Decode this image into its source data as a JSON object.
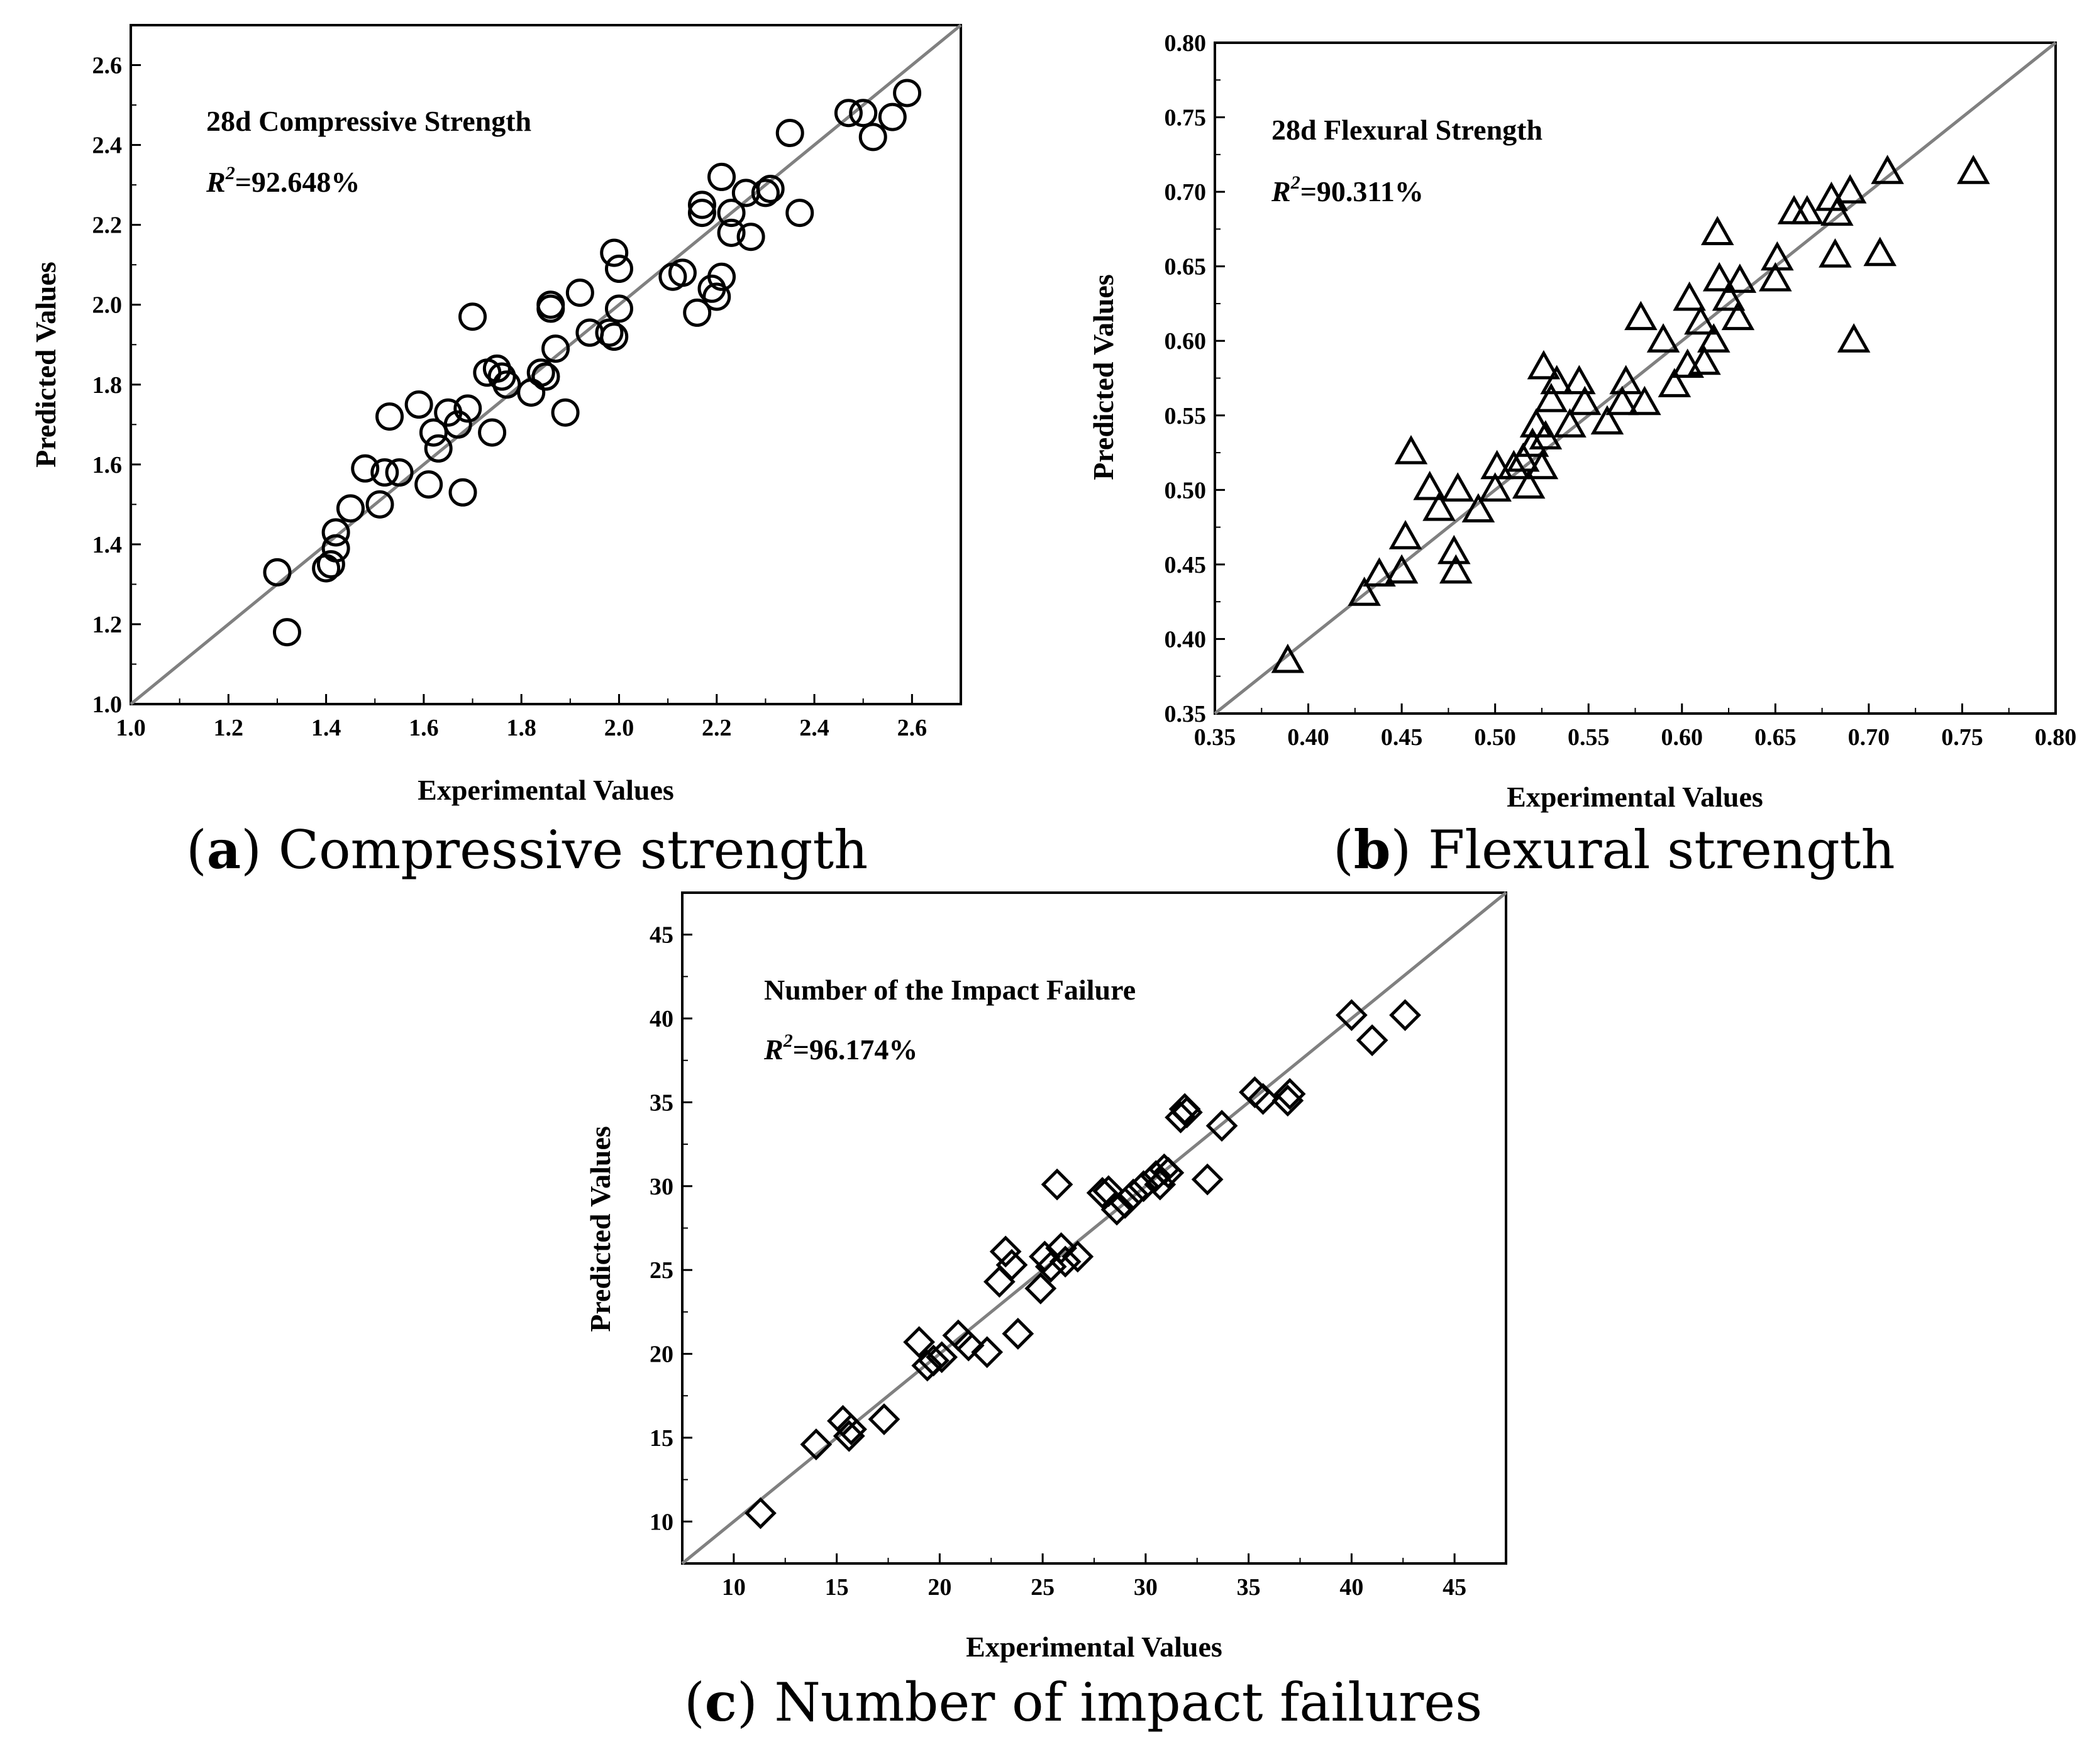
{
  "colors": {
    "marker": "#000000",
    "diagonal": "#808080",
    "axis": "#000000"
  },
  "chart_data": [
    {
      "type": "scatter",
      "marker": "circle",
      "title": "28d Compressive Strength",
      "r2_symbol": "R",
      "r2_exp": "2",
      "r2_value": "=92.648%",
      "xlabel": "Experimental Values",
      "ylabel": "Predicted Values",
      "caption_letter": "a",
      "caption_text": "Compressive strength",
      "xlim": [
        1.0,
        2.7
      ],
      "ylim": [
        1.0,
        2.7
      ],
      "xticks": [
        "1.0",
        "1.2",
        "1.4",
        "1.6",
        "1.8",
        "2.0",
        "2.2",
        "2.4",
        "2.6"
      ],
      "yticks": [
        "1.0",
        "1.2",
        "1.4",
        "1.6",
        "1.8",
        "2.0",
        "2.2",
        "2.4",
        "2.6"
      ],
      "points": [
        [
          1.3,
          1.33
        ],
        [
          1.32,
          1.18
        ],
        [
          1.4,
          1.34
        ],
        [
          1.41,
          1.35
        ],
        [
          1.42,
          1.39
        ],
        [
          1.42,
          1.43
        ],
        [
          1.45,
          1.49
        ],
        [
          1.48,
          1.59
        ],
        [
          1.51,
          1.5
        ],
        [
          1.52,
          1.58
        ],
        [
          1.53,
          1.72
        ],
        [
          1.55,
          1.58
        ],
        [
          1.59,
          1.75
        ],
        [
          1.61,
          1.55
        ],
        [
          1.62,
          1.68
        ],
        [
          1.63,
          1.64
        ],
        [
          1.65,
          1.73
        ],
        [
          1.67,
          1.7
        ],
        [
          1.68,
          1.53
        ],
        [
          1.69,
          1.74
        ],
        [
          1.7,
          1.97
        ],
        [
          1.73,
          1.83
        ],
        [
          1.74,
          1.68
        ],
        [
          1.75,
          1.84
        ],
        [
          1.76,
          1.82
        ],
        [
          1.77,
          1.8
        ],
        [
          1.82,
          1.78
        ],
        [
          1.84,
          1.83
        ],
        [
          1.85,
          1.82
        ],
        [
          1.86,
          1.99
        ],
        [
          1.86,
          2.0
        ],
        [
          1.87,
          1.89
        ],
        [
          1.89,
          1.73
        ],
        [
          1.92,
          2.03
        ],
        [
          1.94,
          1.93
        ],
        [
          1.98,
          1.93
        ],
        [
          1.99,
          1.92
        ],
        [
          1.99,
          2.13
        ],
        [
          2.0,
          1.99
        ],
        [
          2.0,
          2.09
        ],
        [
          2.11,
          2.07
        ],
        [
          2.13,
          2.08
        ],
        [
          2.16,
          1.98
        ],
        [
          2.17,
          2.23
        ],
        [
          2.17,
          2.25
        ],
        [
          2.19,
          2.04
        ],
        [
          2.2,
          2.02
        ],
        [
          2.21,
          2.07
        ],
        [
          2.21,
          2.32
        ],
        [
          2.23,
          2.23
        ],
        [
          2.23,
          2.18
        ],
        [
          2.26,
          2.28
        ],
        [
          2.27,
          2.17
        ],
        [
          2.3,
          2.28
        ],
        [
          2.31,
          2.29
        ],
        [
          2.35,
          2.43
        ],
        [
          2.37,
          2.23
        ],
        [
          2.47,
          2.48
        ],
        [
          2.5,
          2.48
        ],
        [
          2.52,
          2.42
        ],
        [
          2.56,
          2.47
        ],
        [
          2.59,
          2.53
        ]
      ]
    },
    {
      "type": "scatter",
      "marker": "triangle",
      "title": "28d Flexural Strength",
      "r2_symbol": "R",
      "r2_exp": "2",
      "r2_value": "=90.311%",
      "xlabel": "Experimental Values",
      "ylabel": "Predicted Values",
      "caption_letter": "b",
      "caption_text": "Flexural strength",
      "xlim": [
        0.35,
        0.8
      ],
      "ylim": [
        0.35,
        0.8
      ],
      "xticks": [
        "0.35",
        "0.40",
        "0.45",
        "0.50",
        "0.55",
        "0.60",
        "0.65",
        "0.70",
        "0.75",
        "0.80"
      ],
      "yticks": [
        "0.35",
        "0.40",
        "0.45",
        "0.50",
        "0.55",
        "0.60",
        "0.65",
        "0.70",
        "0.75",
        "0.80"
      ],
      "points": [
        [
          0.389,
          0.385
        ],
        [
          0.43,
          0.43
        ],
        [
          0.438,
          0.443
        ],
        [
          0.45,
          0.445
        ],
        [
          0.452,
          0.468
        ],
        [
          0.455,
          0.525
        ],
        [
          0.465,
          0.501
        ],
        [
          0.47,
          0.487
        ],
        [
          0.478,
          0.458
        ],
        [
          0.479,
          0.445
        ],
        [
          0.48,
          0.5
        ],
        [
          0.491,
          0.486
        ],
        [
          0.5,
          0.5
        ],
        [
          0.501,
          0.515
        ],
        [
          0.51,
          0.515
        ],
        [
          0.515,
          0.52
        ],
        [
          0.518,
          0.502
        ],
        [
          0.52,
          0.53
        ],
        [
          0.522,
          0.543
        ],
        [
          0.525,
          0.515
        ],
        [
          0.526,
          0.582
        ],
        [
          0.527,
          0.535
        ],
        [
          0.53,
          0.56
        ],
        [
          0.533,
          0.572
        ],
        [
          0.54,
          0.543
        ],
        [
          0.545,
          0.572
        ],
        [
          0.548,
          0.558
        ],
        [
          0.56,
          0.545
        ],
        [
          0.568,
          0.558
        ],
        [
          0.57,
          0.572
        ],
        [
          0.578,
          0.615
        ],
        [
          0.58,
          0.558
        ],
        [
          0.59,
          0.6
        ],
        [
          0.596,
          0.57
        ],
        [
          0.603,
          0.583
        ],
        [
          0.604,
          0.628
        ],
        [
          0.61,
          0.612
        ],
        [
          0.612,
          0.585
        ],
        [
          0.617,
          0.6
        ],
        [
          0.619,
          0.672
        ],
        [
          0.62,
          0.641
        ],
        [
          0.625,
          0.628
        ],
        [
          0.63,
          0.615
        ],
        [
          0.631,
          0.64
        ],
        [
          0.65,
          0.641
        ],
        [
          0.651,
          0.655
        ],
        [
          0.66,
          0.686
        ],
        [
          0.667,
          0.686
        ],
        [
          0.68,
          0.695
        ],
        [
          0.682,
          0.657
        ],
        [
          0.683,
          0.685
        ],
        [
          0.69,
          0.7
        ],
        [
          0.692,
          0.6
        ],
        [
          0.706,
          0.658
        ],
        [
          0.71,
          0.713
        ],
        [
          0.756,
          0.713
        ]
      ]
    },
    {
      "type": "scatter",
      "marker": "diamond",
      "title": "Number of the Impact Failure",
      "r2_symbol": "R",
      "r2_exp": "2",
      "r2_value": "=96.174%",
      "xlabel": "Experimental Values",
      "ylabel": "Predicted Values",
      "caption_letter": "c",
      "caption_text": "Number of impact failures",
      "xlim": [
        7.5,
        47.5
      ],
      "ylim": [
        7.5,
        47.5
      ],
      "xticks": [
        "10",
        "15",
        "20",
        "25",
        "30",
        "35",
        "40",
        "45"
      ],
      "yticks": [
        "10",
        "15",
        "20",
        "25",
        "30",
        "35",
        "40",
        "45"
      ],
      "points": [
        [
          11.3,
          10.5
        ],
        [
          14.0,
          14.6
        ],
        [
          15.3,
          16.0
        ],
        [
          15.6,
          15.1
        ],
        [
          15.7,
          15.5
        ],
        [
          17.3,
          16.1
        ],
        [
          19.0,
          20.7
        ],
        [
          19.4,
          19.3
        ],
        [
          19.7,
          19.6
        ],
        [
          20.1,
          19.8
        ],
        [
          20.9,
          21.1
        ],
        [
          21.4,
          20.5
        ],
        [
          22.3,
          20.1
        ],
        [
          22.9,
          24.3
        ],
        [
          23.2,
          26.1
        ],
        [
          23.5,
          25.3
        ],
        [
          23.8,
          21.2
        ],
        [
          24.9,
          23.9
        ],
        [
          25.1,
          25.8
        ],
        [
          25.4,
          25.2
        ],
        [
          25.7,
          30.1
        ],
        [
          25.9,
          26.3
        ],
        [
          26.1,
          25.5
        ],
        [
          26.7,
          25.8
        ],
        [
          27.9,
          29.6
        ],
        [
          28.2,
          29.7
        ],
        [
          28.6,
          28.6
        ],
        [
          29.0,
          29.0
        ],
        [
          29.4,
          29.5
        ],
        [
          29.9,
          30.0
        ],
        [
          30.5,
          30.6
        ],
        [
          30.7,
          30.1
        ],
        [
          30.9,
          31.0
        ],
        [
          31.1,
          30.8
        ],
        [
          31.7,
          34.1
        ],
        [
          31.9,
          34.6
        ],
        [
          32.0,
          34.4
        ],
        [
          33.0,
          30.4
        ],
        [
          33.7,
          33.6
        ],
        [
          35.3,
          35.6
        ],
        [
          35.7,
          35.2
        ],
        [
          36.9,
          35.1
        ],
        [
          37.0,
          35.5
        ],
        [
          40.0,
          40.2
        ],
        [
          41.0,
          38.7
        ],
        [
          42.6,
          40.2
        ]
      ]
    }
  ]
}
